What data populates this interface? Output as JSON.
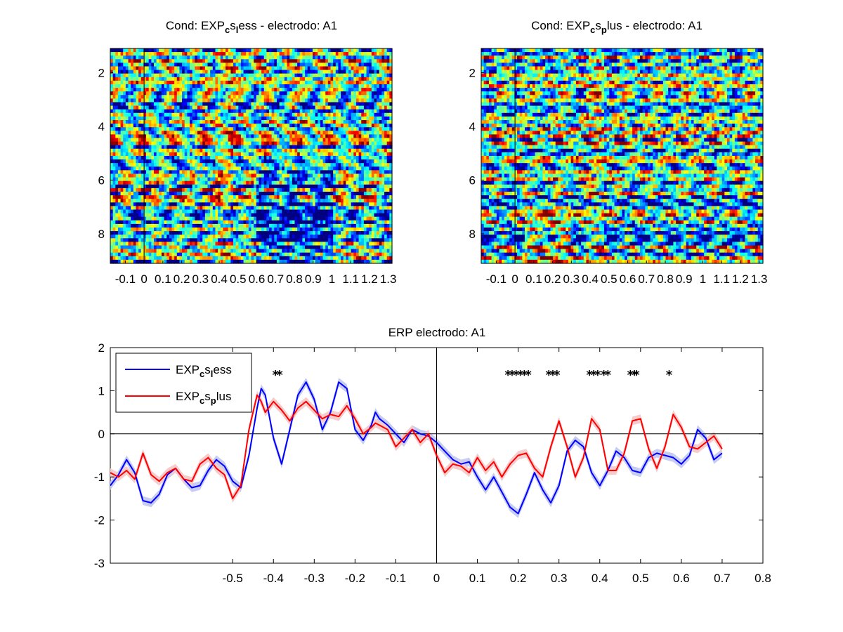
{
  "figure": {
    "background": "#ffffff"
  },
  "chart_data": [
    {
      "type": "heatmap",
      "title": {
        "main": "Cond: EXP",
        "sub1": "c",
        "mid1": "s",
        "sub2": "l",
        "rest": "ess - electrodo: A1"
      },
      "xlim": [
        -0.18,
        1.32
      ],
      "ylim": [
        1.1,
        9.1
      ],
      "xticks": [
        {
          "v": -0.1,
          "label": "-0.1"
        },
        {
          "v": 0,
          "label": "0"
        },
        {
          "v": 0.1,
          "label": "0.1"
        },
        {
          "v": 0.2,
          "label": "0.2"
        },
        {
          "v": 0.3,
          "label": "0.3"
        },
        {
          "v": 0.4,
          "label": "0.4"
        },
        {
          "v": 0.5,
          "label": "0.5"
        },
        {
          "v": 0.6,
          "label": "0.6"
        },
        {
          "v": 0.7,
          "label": "0.7"
        },
        {
          "v": 0.8,
          "label": "0.8"
        },
        {
          "v": 0.9,
          "label": "0.9"
        },
        {
          "v": 1.0,
          "label": "1"
        },
        {
          "v": 1.1,
          "label": "1.1"
        },
        {
          "v": 1.2,
          "label": "1.2"
        },
        {
          "v": 1.3,
          "label": "1.3"
        }
      ],
      "yticks": [
        {
          "v": 2,
          "label": "2"
        },
        {
          "v": 4,
          "label": "4"
        },
        {
          "v": 6,
          "label": "6"
        },
        {
          "v": 8,
          "label": "8"
        }
      ],
      "colormap": "jet",
      "trials": 60,
      "seed": 7,
      "bias": "less"
    },
    {
      "type": "heatmap",
      "title": {
        "main": "Cond: EXP",
        "sub1": "c",
        "mid1": "s",
        "sub2": "p",
        "rest": "lus - electrodo: A1"
      },
      "xlim": [
        -0.18,
        1.32
      ],
      "ylim": [
        1.1,
        9.1
      ],
      "xticks": [
        {
          "v": -0.1,
          "label": "-0.1"
        },
        {
          "v": 0,
          "label": "0"
        },
        {
          "v": 0.1,
          "label": "0.1"
        },
        {
          "v": 0.2,
          "label": "0.2"
        },
        {
          "v": 0.3,
          "label": "0.3"
        },
        {
          "v": 0.4,
          "label": "0.4"
        },
        {
          "v": 0.5,
          "label": "0.5"
        },
        {
          "v": 0.6,
          "label": "0.6"
        },
        {
          "v": 0.7,
          "label": "0.7"
        },
        {
          "v": 0.8,
          "label": "0.8"
        },
        {
          "v": 0.9,
          "label": "0.9"
        },
        {
          "v": 1.0,
          "label": "1"
        },
        {
          "v": 1.1,
          "label": "1.1"
        },
        {
          "v": 1.2,
          "label": "1.2"
        },
        {
          "v": 1.3,
          "label": "1.3"
        }
      ],
      "yticks": [
        {
          "v": 2,
          "label": "2"
        },
        {
          "v": 4,
          "label": "4"
        },
        {
          "v": 6,
          "label": "6"
        },
        {
          "v": 8,
          "label": "8"
        }
      ],
      "colormap": "jet",
      "trials": 60,
      "seed": 13,
      "bias": "plus"
    },
    {
      "type": "line",
      "title": "ERP electrodo: A1",
      "xlim": [
        -0.8,
        0.8
      ],
      "ylim": [
        -3,
        2
      ],
      "xticks": [
        {
          "v": -0.5,
          "label": "-0.5"
        },
        {
          "v": -0.4,
          "label": "-0.4"
        },
        {
          "v": -0.3,
          "label": "-0.3"
        },
        {
          "v": -0.2,
          "label": "-0.2"
        },
        {
          "v": -0.1,
          "label": "-0.1"
        },
        {
          "v": 0,
          "label": "0"
        },
        {
          "v": 0.1,
          "label": "0.1"
        },
        {
          "v": 0.2,
          "label": "0.2"
        },
        {
          "v": 0.3,
          "label": "0.3"
        },
        {
          "v": 0.4,
          "label": "0.4"
        },
        {
          "v": 0.5,
          "label": "0.5"
        },
        {
          "v": 0.6,
          "label": "0.6"
        },
        {
          "v": 0.7,
          "label": "0.7"
        },
        {
          "v": 0.8,
          "label": "0.8"
        }
      ],
      "yticks": [
        {
          "v": 2,
          "label": "2"
        },
        {
          "v": 1,
          "label": "1"
        },
        {
          "v": 0,
          "label": "0"
        },
        {
          "v": -1,
          "label": "-1"
        },
        {
          "v": -2,
          "label": "-2"
        },
        {
          "v": -3,
          "label": "-3"
        }
      ],
      "zero_lines": true,
      "legend_position": "top-left",
      "series": [
        {
          "legend": {
            "main": "EXP",
            "sub1": "c",
            "mid1": "s",
            "sub2": "l",
            "rest": "ess"
          },
          "color": "#0000ff",
          "shade": "#c7ccf2",
          "x": [
            -0.8,
            -0.78,
            -0.76,
            -0.74,
            -0.72,
            -0.7,
            -0.68,
            -0.66,
            -0.64,
            -0.62,
            -0.6,
            -0.58,
            -0.56,
            -0.54,
            -0.52,
            -0.5,
            -0.48,
            -0.46,
            -0.44,
            -0.43,
            -0.42,
            -0.4,
            -0.38,
            -0.36,
            -0.34,
            -0.32,
            -0.3,
            -0.28,
            -0.26,
            -0.24,
            -0.22,
            -0.2,
            -0.18,
            -0.16,
            -0.15,
            -0.14,
            -0.12,
            -0.1,
            -0.08,
            -0.06,
            -0.04,
            -0.02,
            0,
            0.02,
            0.04,
            0.06,
            0.08,
            0.1,
            0.12,
            0.14,
            0.16,
            0.18,
            0.2,
            0.22,
            0.24,
            0.26,
            0.28,
            0.3,
            0.32,
            0.34,
            0.36,
            0.38,
            0.4,
            0.42,
            0.44,
            0.46,
            0.48,
            0.5,
            0.52,
            0.54,
            0.56,
            0.58,
            0.6,
            0.62,
            0.64,
            0.66,
            0.68,
            0.7
          ],
          "y": [
            -1.2,
            -0.95,
            -0.6,
            -0.9,
            -1.55,
            -1.6,
            -1.4,
            -0.95,
            -0.8,
            -1.05,
            -1.25,
            -1.2,
            -0.85,
            -0.6,
            -0.75,
            -1.1,
            -1.25,
            -0.5,
            0.6,
            1.05,
            0.9,
            -0.1,
            -0.7,
            0.1,
            0.9,
            1.2,
            0.8,
            0.1,
            0.5,
            1.2,
            1.05,
            0.1,
            -0.15,
            0.2,
            0.5,
            0.35,
            0.2,
            0,
            -0.2,
            0.1,
            0.0,
            -0.05,
            -0.2,
            -0.4,
            -0.6,
            -0.7,
            -0.65,
            -1.0,
            -1.3,
            -1.0,
            -1.35,
            -1.7,
            -1.85,
            -1.4,
            -0.9,
            -1.3,
            -1.6,
            -1.2,
            -0.4,
            -0.15,
            -0.3,
            -0.9,
            -1.2,
            -0.85,
            -0.4,
            -0.55,
            -0.85,
            -0.9,
            -0.55,
            -0.45,
            -0.5,
            -0.55,
            -0.7,
            -0.5,
            0.1,
            -0.1,
            -0.6,
            -0.45
          ]
        },
        {
          "legend": {
            "main": "EXP",
            "sub1": "c",
            "mid1": "s",
            "sub2": "p",
            "rest": "lus"
          },
          "color": "#ff0000",
          "shade": "#f6cccc",
          "x": [
            -0.8,
            -0.78,
            -0.76,
            -0.74,
            -0.72,
            -0.7,
            -0.68,
            -0.66,
            -0.64,
            -0.62,
            -0.6,
            -0.58,
            -0.56,
            -0.54,
            -0.52,
            -0.5,
            -0.48,
            -0.46,
            -0.44,
            -0.43,
            -0.42,
            -0.4,
            -0.38,
            -0.36,
            -0.34,
            -0.32,
            -0.3,
            -0.28,
            -0.26,
            -0.24,
            -0.22,
            -0.2,
            -0.18,
            -0.16,
            -0.15,
            -0.14,
            -0.12,
            -0.1,
            -0.08,
            -0.06,
            -0.04,
            -0.02,
            0,
            0.02,
            0.04,
            0.06,
            0.08,
            0.1,
            0.12,
            0.14,
            0.16,
            0.18,
            0.2,
            0.22,
            0.24,
            0.26,
            0.28,
            0.3,
            0.32,
            0.34,
            0.36,
            0.38,
            0.4,
            0.42,
            0.44,
            0.46,
            0.48,
            0.5,
            0.52,
            0.54,
            0.56,
            0.58,
            0.6,
            0.62,
            0.64,
            0.66,
            0.68,
            0.7
          ],
          "y": [
            -0.9,
            -1.0,
            -0.85,
            -1.05,
            -0.45,
            -0.95,
            -1.1,
            -0.9,
            -0.8,
            -1.05,
            -1.1,
            -0.7,
            -0.55,
            -0.8,
            -0.95,
            -1.5,
            -1.2,
            0.1,
            0.9,
            0.75,
            0.5,
            0.75,
            0.55,
            0.3,
            0.6,
            0.75,
            0.55,
            0.35,
            0.45,
            0.4,
            0.65,
            0.35,
            0.0,
            0.15,
            0.25,
            0.2,
            0.1,
            -0.3,
            -0.1,
            0.1,
            -0.2,
            0.0,
            -0.5,
            -0.9,
            -0.7,
            -0.75,
            -0.9,
            -0.55,
            -0.85,
            -0.65,
            -1.0,
            -0.7,
            -0.5,
            -0.45,
            -0.8,
            -1.0,
            -0.3,
            0.3,
            -0.3,
            -1.0,
            -0.55,
            0.35,
            0.1,
            -0.85,
            -0.85,
            -0.45,
            0.3,
            0.35,
            -0.35,
            -0.8,
            -0.3,
            0.45,
            0.15,
            -0.3,
            -0.35,
            -0.2,
            -0.05,
            -0.35
          ]
        }
      ],
      "significance": {
        "y": 1.38,
        "x": [
          -0.395,
          -0.385,
          0.175,
          0.185,
          0.195,
          0.205,
          0.215,
          0.225,
          0.275,
          0.285,
          0.295,
          0.375,
          0.385,
          0.395,
          0.41,
          0.42,
          0.475,
          0.485,
          0.49,
          0.57
        ]
      }
    }
  ]
}
